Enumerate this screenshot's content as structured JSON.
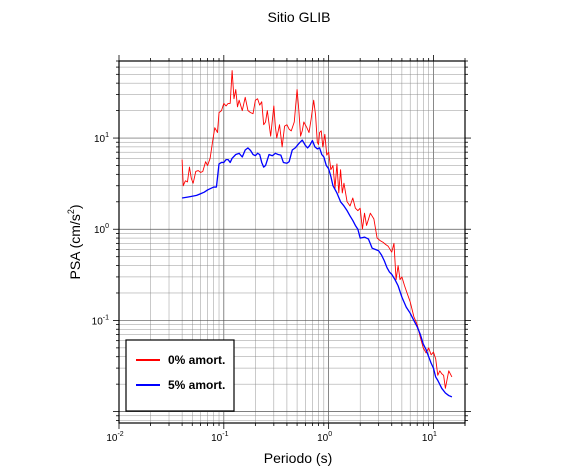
{
  "chart_data": {
    "type": "line",
    "title": "Sitio GLIB",
    "xlabel": "Periodo (s)",
    "ylabel_prefix": "PSA (cm/s",
    "ylabel_exp": "2",
    "ylabel_suffix": ")",
    "x_scale": "log",
    "y_scale": "log",
    "xlim": [
      0.01,
      20
    ],
    "ylim": [
      0.0075,
      70
    ],
    "grid": true,
    "legend_position": "bottom-left",
    "x_ticks": [
      {
        "value": 0.01,
        "base": "10",
        "exp": "-2"
      },
      {
        "value": 0.1,
        "base": "10",
        "exp": "-1"
      },
      {
        "value": 1,
        "base": "10",
        "exp": "0"
      },
      {
        "value": 10,
        "base": "10",
        "exp": "1"
      }
    ],
    "y_ticks": [
      {
        "value": 0.1,
        "base": "10",
        "exp": "-1"
      },
      {
        "value": 1,
        "base": "10",
        "exp": "0"
      },
      {
        "value": 10,
        "base": "10",
        "exp": "1"
      }
    ],
    "series": [
      {
        "name": "0% amort.",
        "color": "#ff0000",
        "points": [
          [
            0.04,
            5.8
          ],
          [
            0.041,
            3.0
          ],
          [
            0.043,
            3.4
          ],
          [
            0.045,
            3.3
          ],
          [
            0.047,
            4.8
          ],
          [
            0.049,
            3.6
          ],
          [
            0.051,
            3.2
          ],
          [
            0.054,
            4.3
          ],
          [
            0.057,
            4.4
          ],
          [
            0.06,
            4.2
          ],
          [
            0.063,
            4.3
          ],
          [
            0.067,
            5.5
          ],
          [
            0.07,
            5.0
          ],
          [
            0.074,
            6.0
          ],
          [
            0.078,
            9.0
          ],
          [
            0.082,
            13.0
          ],
          [
            0.087,
            11.5
          ],
          [
            0.09,
            19.0
          ],
          [
            0.095,
            20.0
          ],
          [
            0.1,
            24.0
          ],
          [
            0.105,
            22.5
          ],
          [
            0.11,
            24.0
          ],
          [
            0.115,
            24.0
          ],
          [
            0.12,
            55.0
          ],
          [
            0.125,
            27.0
          ],
          [
            0.13,
            34.0
          ],
          [
            0.135,
            22.0
          ],
          [
            0.14,
            26.0
          ],
          [
            0.15,
            20.0
          ],
          [
            0.16,
            28.0
          ],
          [
            0.17,
            20.0
          ],
          [
            0.18,
            19.0
          ],
          [
            0.19,
            18.5
          ],
          [
            0.2,
            26.0
          ],
          [
            0.21,
            27.0
          ],
          [
            0.22,
            23.0
          ],
          [
            0.23,
            25.0
          ],
          [
            0.24,
            14.0
          ],
          [
            0.25,
            15.0
          ],
          [
            0.26,
            20.0
          ],
          [
            0.28,
            10.5
          ],
          [
            0.3,
            22.5
          ],
          [
            0.31,
            13.5
          ],
          [
            0.32,
            10.0
          ],
          [
            0.34,
            14.0
          ],
          [
            0.36,
            8.0
          ],
          [
            0.38,
            13.5
          ],
          [
            0.4,
            14.0
          ],
          [
            0.42,
            12.5
          ],
          [
            0.44,
            12.0
          ],
          [
            0.47,
            15.0
          ],
          [
            0.5,
            34.0
          ],
          [
            0.52,
            20.0
          ],
          [
            0.54,
            10.5
          ],
          [
            0.56,
            12.0
          ],
          [
            0.58,
            15.0
          ],
          [
            0.62,
            13.0
          ],
          [
            0.65,
            11.5
          ],
          [
            0.68,
            16.0
          ],
          [
            0.72,
            26.0
          ],
          [
            0.75,
            18.0
          ],
          [
            0.78,
            9.0
          ],
          [
            0.8,
            8.5
          ],
          [
            0.82,
            11.5
          ],
          [
            0.85,
            12.0
          ],
          [
            0.88,
            8.0
          ],
          [
            0.92,
            11.0
          ],
          [
            0.96,
            6.5
          ],
          [
            1.0,
            7.0
          ],
          [
            1.05,
            4.5
          ],
          [
            1.1,
            5.0
          ],
          [
            1.15,
            2.8
          ],
          [
            1.2,
            5.2
          ],
          [
            1.25,
            2.5
          ],
          [
            1.3,
            4.5
          ],
          [
            1.35,
            2.5
          ],
          [
            1.4,
            3.2
          ],
          [
            1.5,
            2.0
          ],
          [
            1.6,
            1.8
          ],
          [
            1.7,
            2.2
          ],
          [
            1.8,
            1.7
          ],
          [
            1.9,
            1.6
          ],
          [
            2.0,
            1.7
          ],
          [
            2.1,
            1.0
          ],
          [
            2.2,
            1.5
          ],
          [
            2.3,
            1.1
          ],
          [
            2.5,
            1.5
          ],
          [
            2.7,
            1.3
          ],
          [
            2.9,
            0.8
          ],
          [
            3.1,
            0.75
          ],
          [
            3.3,
            0.72
          ],
          [
            3.5,
            0.68
          ],
          [
            3.7,
            0.65
          ],
          [
            4.0,
            0.56
          ],
          [
            4.2,
            0.7
          ],
          [
            4.4,
            0.28
          ],
          [
            4.6,
            0.4
          ],
          [
            4.8,
            0.28
          ],
          [
            5.0,
            0.3
          ],
          [
            5.3,
            0.24
          ],
          [
            5.6,
            0.2
          ],
          [
            6.0,
            0.16
          ],
          [
            6.5,
            0.11
          ],
          [
            7.0,
            0.09
          ],
          [
            7.5,
            0.065
          ],
          [
            8.0,
            0.05
          ],
          [
            8.5,
            0.044
          ],
          [
            9.0,
            0.05
          ],
          [
            9.5,
            0.042
          ],
          [
            10.0,
            0.045
          ],
          [
            10.5,
            0.038
          ],
          [
            11.0,
            0.025
          ],
          [
            11.5,
            0.028
          ],
          [
            12.0,
            0.026
          ],
          [
            12.5,
            0.025
          ],
          [
            13.0,
            0.018
          ],
          [
            14.0,
            0.028
          ],
          [
            15.0,
            0.024
          ]
        ]
      },
      {
        "name": "5% amort.",
        "color": "#0000ff",
        "points": [
          [
            0.04,
            2.2
          ],
          [
            0.045,
            2.25
          ],
          [
            0.05,
            2.3
          ],
          [
            0.055,
            2.35
          ],
          [
            0.06,
            2.45
          ],
          [
            0.065,
            2.55
          ],
          [
            0.07,
            2.7
          ],
          [
            0.075,
            2.8
          ],
          [
            0.08,
            2.9
          ],
          [
            0.085,
            2.9
          ],
          [
            0.09,
            5.2
          ],
          [
            0.095,
            5.4
          ],
          [
            0.1,
            5.4
          ],
          [
            0.105,
            5.8
          ],
          [
            0.11,
            5.8
          ],
          [
            0.115,
            5.4
          ],
          [
            0.12,
            6.0
          ],
          [
            0.13,
            6.6
          ],
          [
            0.14,
            6.8
          ],
          [
            0.15,
            6.2
          ],
          [
            0.16,
            7.4
          ],
          [
            0.17,
            7.8
          ],
          [
            0.18,
            7.3
          ],
          [
            0.19,
            6.6
          ],
          [
            0.2,
            6.4
          ],
          [
            0.21,
            6.8
          ],
          [
            0.22,
            6.6
          ],
          [
            0.23,
            5.4
          ],
          [
            0.24,
            4.8
          ],
          [
            0.25,
            5.0
          ],
          [
            0.27,
            6.6
          ],
          [
            0.29,
            6.4
          ],
          [
            0.31,
            6.8
          ],
          [
            0.33,
            6.6
          ],
          [
            0.35,
            6.5
          ],
          [
            0.37,
            5.4
          ],
          [
            0.4,
            5.3
          ],
          [
            0.42,
            5.5
          ],
          [
            0.45,
            7.4
          ],
          [
            0.48,
            7.8
          ],
          [
            0.52,
            8.7
          ],
          [
            0.56,
            9.5
          ],
          [
            0.6,
            8.3
          ],
          [
            0.63,
            7.8
          ],
          [
            0.66,
            8.3
          ],
          [
            0.7,
            9.4
          ],
          [
            0.74,
            8.0
          ],
          [
            0.78,
            7.6
          ],
          [
            0.82,
            7.8
          ],
          [
            0.86,
            6.6
          ],
          [
            0.9,
            6.2
          ],
          [
            0.95,
            5.0
          ],
          [
            1.0,
            4.6
          ],
          [
            1.05,
            3.8
          ],
          [
            1.1,
            3.0
          ],
          [
            1.2,
            2.5
          ],
          [
            1.3,
            2.0
          ],
          [
            1.4,
            1.8
          ],
          [
            1.5,
            1.6
          ],
          [
            1.6,
            1.4
          ],
          [
            1.7,
            1.25
          ],
          [
            1.8,
            1.1
          ],
          [
            1.9,
            1.0
          ],
          [
            2.0,
            0.8
          ],
          [
            2.2,
            0.82
          ],
          [
            2.4,
            0.78
          ],
          [
            2.6,
            0.62
          ],
          [
            2.8,
            0.6
          ],
          [
            3.0,
            0.58
          ],
          [
            3.2,
            0.52
          ],
          [
            3.4,
            0.45
          ],
          [
            3.6,
            0.38
          ],
          [
            3.8,
            0.34
          ],
          [
            4.0,
            0.32
          ],
          [
            4.3,
            0.28
          ],
          [
            4.6,
            0.24
          ],
          [
            5.0,
            0.18
          ],
          [
            5.5,
            0.14
          ],
          [
            6.0,
            0.12
          ],
          [
            6.5,
            0.1
          ],
          [
            7.0,
            0.085
          ],
          [
            7.5,
            0.07
          ],
          [
            8.0,
            0.055
          ],
          [
            8.5,
            0.048
          ],
          [
            9.0,
            0.04
          ],
          [
            9.5,
            0.034
          ],
          [
            10.0,
            0.03
          ],
          [
            10.5,
            0.024
          ],
          [
            11.0,
            0.022
          ],
          [
            12.0,
            0.018
          ],
          [
            13.0,
            0.016
          ],
          [
            14.0,
            0.015
          ],
          [
            15.0,
            0.0145
          ]
        ]
      }
    ]
  }
}
